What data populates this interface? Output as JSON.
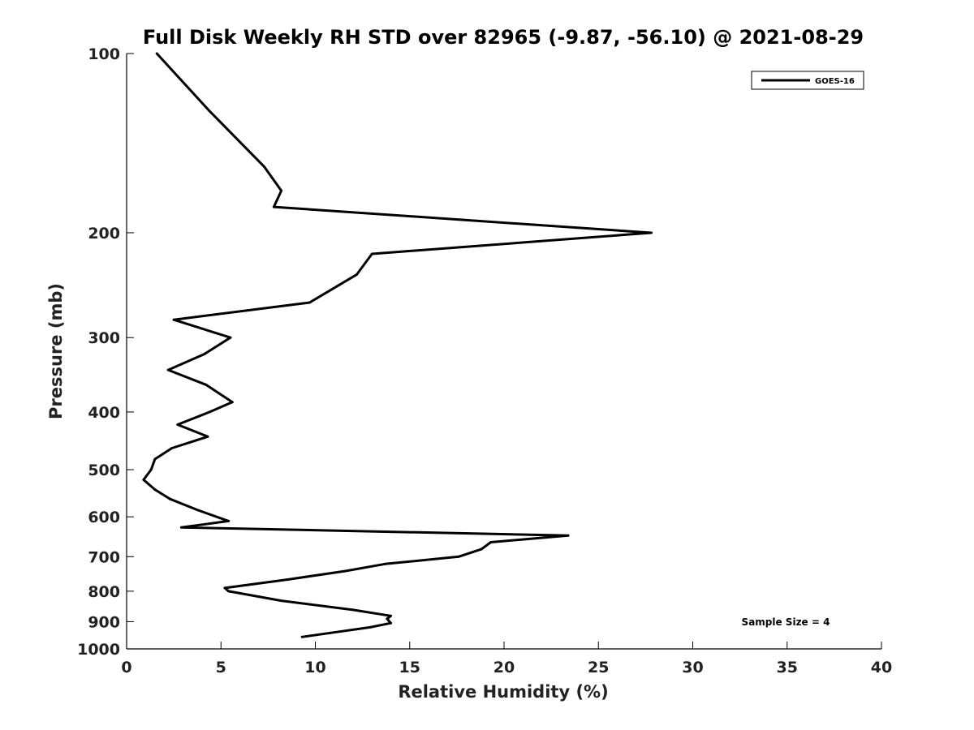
{
  "chart_data": {
    "type": "line",
    "title": "Full Disk Weekly RH STD over 82965 (-9.87, -56.10) @ 2021-08-29",
    "xlabel": "Relative Humidity (%)",
    "ylabel": "Pressure (mb)",
    "xlim": [
      0,
      40
    ],
    "ylim": [
      1000,
      100
    ],
    "yscale": "log",
    "y_reversed": true,
    "xticks": [
      "0",
      "5",
      "10",
      "15",
      "20",
      "25",
      "30",
      "35",
      "40"
    ],
    "yticks": [
      "100",
      "200",
      "300",
      "400",
      "500",
      "600",
      "700",
      "800",
      "900",
      "1000"
    ],
    "grid": false,
    "legend_position": "top-right",
    "annotation": "Sample Size = 4",
    "series": [
      {
        "name": "GOES-16",
        "color": "#000000",
        "points": [
          [
            1.6,
            100
          ],
          [
            4.4,
            125
          ],
          [
            7.3,
            155
          ],
          [
            8.2,
            170
          ],
          [
            7.8,
            181
          ],
          [
            27.8,
            200
          ],
          [
            13.0,
            217
          ],
          [
            12.2,
            235
          ],
          [
            9.7,
            262
          ],
          [
            2.5,
            280
          ],
          [
            5.5,
            300
          ],
          [
            4.1,
            320
          ],
          [
            2.2,
            340
          ],
          [
            4.2,
            360
          ],
          [
            5.6,
            385
          ],
          [
            4.4,
            400
          ],
          [
            2.7,
            420
          ],
          [
            4.3,
            440
          ],
          [
            2.4,
            460
          ],
          [
            1.5,
            480
          ],
          [
            1.3,
            500
          ],
          [
            0.9,
            520
          ],
          [
            1.5,
            540
          ],
          [
            2.3,
            560
          ],
          [
            3.8,
            585
          ],
          [
            5.4,
            610
          ],
          [
            2.9,
            625
          ],
          [
            23.4,
            645
          ],
          [
            19.3,
            662
          ],
          [
            18.8,
            680
          ],
          [
            17.6,
            700
          ],
          [
            13.7,
            720
          ],
          [
            11.6,
            740
          ],
          [
            8.5,
            765
          ],
          [
            5.2,
            790
          ],
          [
            5.4,
            800
          ],
          [
            8.2,
            830
          ],
          [
            12.0,
            860
          ],
          [
            14.0,
            880
          ],
          [
            13.8,
            890
          ],
          [
            14.0,
            905
          ],
          [
            12.9,
            920
          ],
          [
            10.8,
            940
          ],
          [
            9.3,
            955
          ]
        ]
      }
    ]
  }
}
